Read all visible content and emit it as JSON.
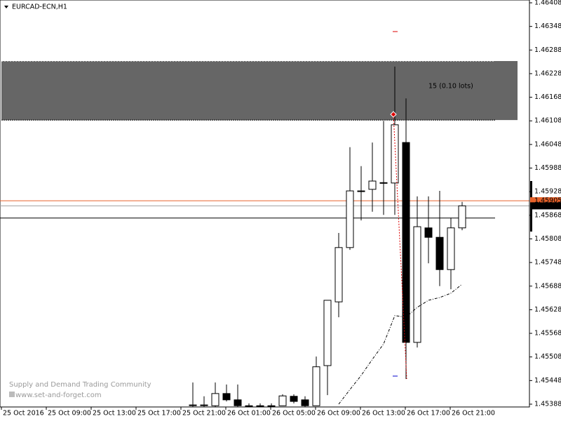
{
  "chart_data": {
    "type": "candlestick",
    "title": "EURCAD-ECN,H1",
    "watermark": [
      "Supply and Demand Trading Community",
      "www.set-and-forget.com"
    ],
    "ylim": [
      1.45388,
      1.46408
    ],
    "yticks": [
      1.46408,
      1.46348,
      1.46288,
      1.46228,
      1.46168,
      1.46108,
      1.46048,
      1.45988,
      1.45928,
      1.45868,
      1.45808,
      1.45748,
      1.45688,
      1.45628,
      1.45568,
      1.45508,
      1.45448,
      1.45388
    ],
    "x_labels": [
      "25 Oct 2016",
      "25 Oct 09:00",
      "25 Oct 13:00",
      "25 Oct 17:00",
      "25 Oct 21:00",
      "26 Oct 01:00",
      "26 Oct 05:00",
      "26 Oct 09:00",
      "26 Oct 13:00",
      "26 Oct 17:00",
      "26 Oct 21:00"
    ],
    "open": [
      1.45386,
      1.45386,
      1.45384,
      1.45415,
      1.45399,
      1.45384,
      1.45384,
      1.45384,
      1.45384,
      1.45408,
      1.45399,
      1.45384,
      1.45486,
      1.45648,
      1.45786,
      1.4593,
      1.45934,
      1.45951,
      1.4595,
      1.46053,
      1.45545,
      1.45836,
      1.45812,
      1.4573,
      1.45836
    ],
    "high": [
      1.45443,
      1.45408,
      1.45443,
      1.45438,
      1.45438,
      1.4539,
      1.4539,
      1.4539,
      1.45413,
      1.45413,
      1.45408,
      1.45509,
      1.45652,
      1.45823,
      1.46041,
      1.45993,
      1.46053,
      1.46108,
      1.46246,
      1.46165,
      1.45916,
      1.45916,
      1.4593,
      1.45862,
      1.45902
    ],
    "low": [
      1.45381,
      1.45381,
      1.45381,
      1.45395,
      1.45381,
      1.45381,
      1.45381,
      1.45381,
      1.45384,
      1.4539,
      1.45381,
      1.45384,
      1.45411,
      1.45609,
      1.4578,
      1.45855,
      1.45877,
      1.45869,
      1.45869,
      1.45452,
      1.45532,
      1.45746,
      1.45688,
      1.4568,
      1.4583
    ],
    "close": [
      1.45386,
      1.45386,
      1.45415,
      1.45399,
      1.45384,
      1.45384,
      1.45384,
      1.45384,
      1.45409,
      1.45395,
      1.45384,
      1.45483,
      1.45652,
      1.45786,
      1.4593,
      1.4593,
      1.45955,
      1.45951,
      1.46098,
      1.45545,
      1.45839,
      1.45812,
      1.4573,
      1.45836,
      1.45892
    ],
    "ma": [
      null,
      null,
      null,
      null,
      null,
      null,
      null,
      null,
      null,
      null,
      null,
      null,
      null,
      1.45388,
      1.45425,
      1.45461,
      1.45502,
      1.45541,
      1.45613,
      1.45609,
      1.45634,
      1.45652,
      1.45659,
      1.4567,
      1.45693
    ],
    "zone": {
      "top": 1.4626,
      "bottom": 1.4611,
      "label": "15 (0.10 lots)",
      "color": "#666666"
    },
    "lines": [
      {
        "value": 1.45905,
        "color": "#e8622a",
        "tag": true
      },
      {
        "value": 1.45892,
        "color": "#a0a0a0",
        "tag": true
      },
      {
        "value": 1.45861,
        "color": "#000000",
        "tag": false
      }
    ]
  }
}
